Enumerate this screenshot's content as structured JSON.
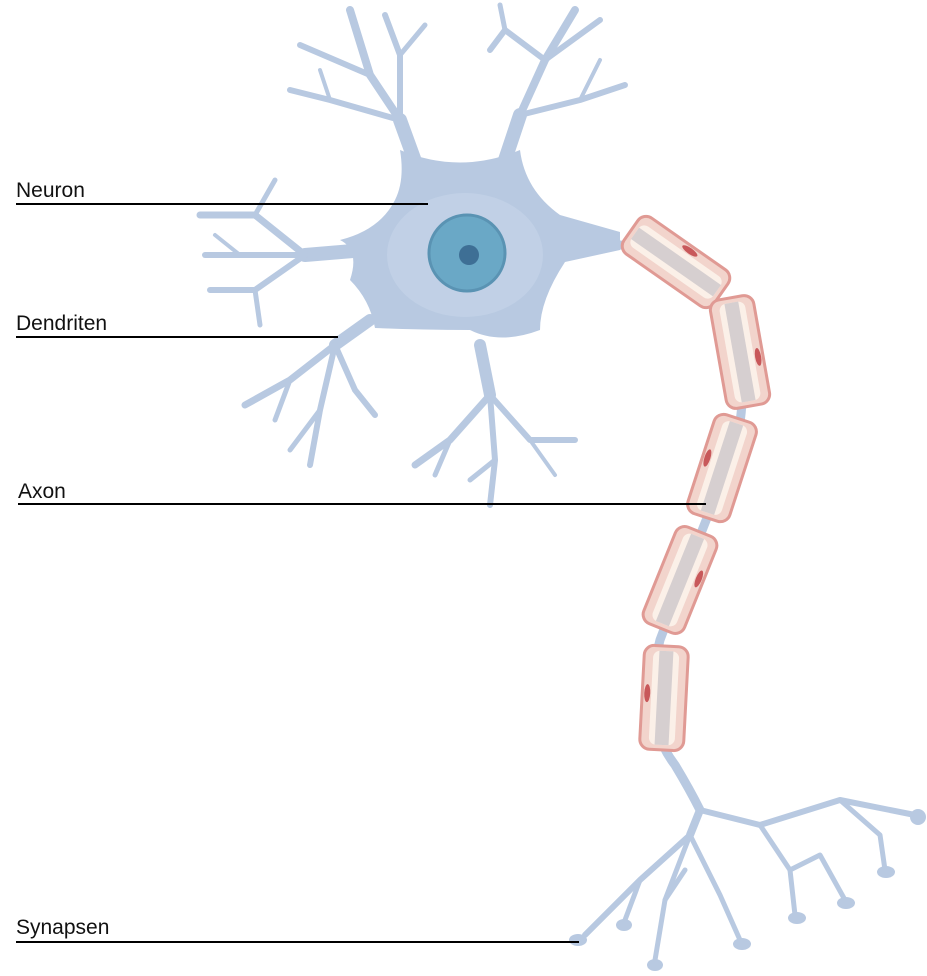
{
  "diagram": {
    "labels": {
      "neuron": "Neuron",
      "dendrites": "Dendriten",
      "axon": "Axon",
      "synapses": "Synapsen"
    },
    "colors": {
      "cell": "#b8c9e1",
      "cell_highlight": "#c7d5ea",
      "nucleus": "#6aa8c6",
      "nucleus_rim": "#5a93b3",
      "nucleolus": "#3e6f95",
      "myelin_outer": "#e09a94",
      "myelin_fill": "#f2d4cc",
      "myelin_inner": "#fbf0e8",
      "axon_core": "#d6cfd0",
      "myelin_nucleus": "#c8585a",
      "leader_line": "#000000",
      "label_text": "#111111"
    }
  }
}
